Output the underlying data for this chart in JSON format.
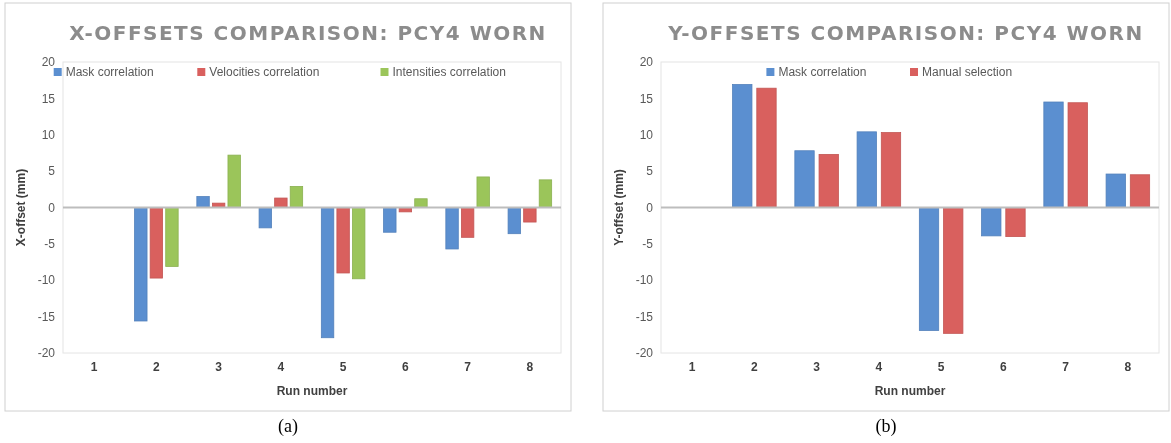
{
  "chart_data": [
    {
      "type": "bar",
      "title": "X-OFFSETS COMPARISON: PCY4 WORN",
      "xlabel": "Run number",
      "ylabel": "X-offset (mm)",
      "categories": [
        "1",
        "2",
        "3",
        "4",
        "5",
        "6",
        "7",
        "8"
      ],
      "series": [
        {
          "name": "Mask correlation",
          "color": "#5b8fd0",
          "values": [
            null,
            -15.6,
            1.5,
            -2.8,
            -17.9,
            -3.4,
            -5.7,
            -3.6
          ]
        },
        {
          "name": "Velocities correlation",
          "color": "#d9605e",
          "values": [
            null,
            -9.7,
            0.6,
            1.3,
            -9.0,
            -0.6,
            -4.1,
            -2.0
          ]
        },
        {
          "name": "Intensities correlation",
          "color": "#9bc55a",
          "values": [
            null,
            -8.1,
            7.2,
            2.9,
            -9.8,
            1.2,
            4.2,
            3.8
          ]
        }
      ],
      "ylim": [
        -20,
        20
      ],
      "yticks": [
        -20,
        -15,
        -10,
        -5,
        0,
        5,
        10,
        15,
        20
      ],
      "legend": "top",
      "annotations": [
        "(a)"
      ]
    },
    {
      "type": "bar",
      "title": "Y-OFFSETS COMPARISON: PCY4 WORN",
      "xlabel": "Run number",
      "ylabel": "Y-offset (mm)",
      "categories": [
        "1",
        "2",
        "3",
        "4",
        "5",
        "6",
        "7",
        "8"
      ],
      "series": [
        {
          "name": "Mask correlation",
          "color": "#5b8fd0",
          "values": [
            null,
            16.9,
            7.8,
            10.4,
            -16.9,
            -3.9,
            14.5,
            4.6
          ]
        },
        {
          "name": "Manual selection",
          "color": "#d9605e",
          "values": [
            null,
            16.4,
            7.3,
            10.3,
            -17.3,
            -4.0,
            14.4,
            4.5
          ]
        }
      ],
      "ylim": [
        -20,
        20
      ],
      "yticks": [
        -20,
        -15,
        -10,
        -5,
        0,
        5,
        10,
        15,
        20
      ],
      "legend": "top",
      "annotations": [
        "(b)"
      ]
    }
  ]
}
